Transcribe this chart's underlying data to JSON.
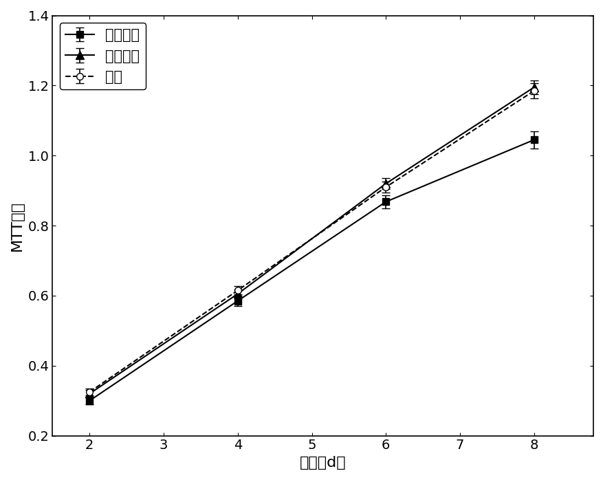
{
  "x": [
    2,
    4,
    6,
    8
  ],
  "series": [
    {
      "label": "双层敟料",
      "y": [
        0.3,
        0.585,
        0.868,
        1.045
      ],
      "yerr": [
        0.01,
        0.015,
        0.018,
        0.025
      ],
      "color": "#000000",
      "linestyle": "-",
      "marker": "s",
      "markerfacecolor": "#000000",
      "markersize": 7
    },
    {
      "label": "泡沫敟料",
      "y": [
        0.32,
        0.605,
        0.92,
        1.195
      ],
      "yerr": [
        0.01,
        0.012,
        0.015,
        0.02
      ],
      "color": "#000000",
      "linestyle": "-",
      "marker": "^",
      "markerfacecolor": "#000000",
      "markersize": 8
    },
    {
      "label": "对照",
      "y": [
        0.325,
        0.615,
        0.91,
        1.185
      ],
      "yerr": [
        0.01,
        0.012,
        0.015,
        0.022
      ],
      "color": "#000000",
      "linestyle": "--",
      "marker": "o",
      "markerfacecolor": "#ffffff",
      "markersize": 7
    }
  ],
  "xlabel": "时间（d）",
  "ylabel": "MTT吸收",
  "xlim": [
    1.5,
    8.8
  ],
  "ylim": [
    0.2,
    1.4
  ],
  "xticks": [
    2,
    3,
    4,
    5,
    6,
    7,
    8
  ],
  "yticks": [
    0.2,
    0.4,
    0.6,
    0.8,
    1.0,
    1.2,
    1.4
  ],
  "legend_loc": "upper left",
  "background_color": "#ffffff",
  "font_size": 16,
  "tick_font_size": 14
}
